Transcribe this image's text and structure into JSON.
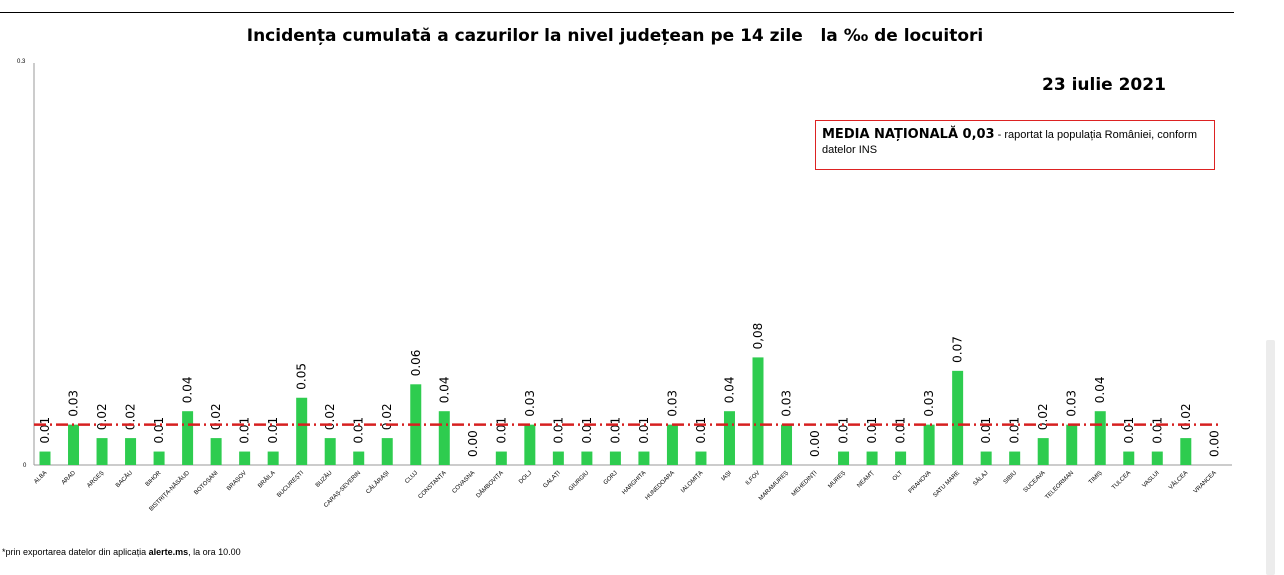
{
  "chart_data": {
    "type": "bar",
    "title": "Incidența cumulată a cazurilor la nivel județean pe 14 zile   la ‰ de locuitori",
    "date": "23 iulie 2021",
    "ylim": [
      0,
      0.3
    ],
    "yticks": [
      "0",
      "0.3"
    ],
    "reference_line": {
      "label": "MEDIA NAȚIONALĂ",
      "value": 0.03,
      "color": "#d62020",
      "style": "dash-dot"
    },
    "bar_color": "#2ecc4f",
    "grid": false,
    "categories": [
      "ALBA",
      "ARAD",
      "ARGEȘ",
      "BACĂU",
      "BIHOR",
      "BISTRIȚA-NĂSĂUD",
      "BOTOȘANI",
      "BRAȘOV",
      "BRĂILA",
      "BUCUREȘTI",
      "BUZĂU",
      "CARAȘ-SEVERIN",
      "CĂLĂRAȘI",
      "CLUJ",
      "CONSTANȚA",
      "COVASNA",
      "DÂMBOVIȚA",
      "DOLJ",
      "GALAȚI",
      "GIURGIU",
      "GORJ",
      "HARGHITA",
      "HUNEDOARA",
      "IALOMIȚA",
      "IAȘI",
      "ILFOV",
      "MARAMUREȘ",
      "MEHEDINȚI",
      "MUREȘ",
      "NEAMȚ",
      "OLT",
      "PRAHOVA",
      "SATU MARE",
      "SĂLAJ",
      "SIBIU",
      "SUCEAVA",
      "TELEORMAN",
      "TIMIȘ",
      "TULCEA",
      "VASLUI",
      "VÂLCEA",
      "VRANCEA"
    ],
    "values": [
      0.01,
      0.03,
      0.02,
      0.02,
      0.01,
      0.04,
      0.02,
      0.01,
      0.01,
      0.05,
      0.02,
      0.01,
      0.02,
      0.06,
      0.04,
      0.0,
      0.01,
      0.03,
      0.01,
      0.01,
      0.01,
      0.01,
      0.03,
      0.01,
      0.04,
      0.08,
      0.03,
      0.0,
      0.01,
      0.01,
      0.01,
      0.03,
      0.07,
      0.01,
      0.01,
      0.02,
      0.03,
      0.04,
      0.01,
      0.01,
      0.02,
      0.0
    ],
    "value_labels": [
      "0.01",
      "0.03",
      "0.02",
      "0.02",
      "0.01",
      "0.04",
      "0.02",
      "0.01",
      "0.01",
      "0.05",
      "0.02",
      "0.01",
      "0.02",
      "0.06",
      "0.04",
      "0.00",
      "0.01",
      "0.03",
      "0.01",
      "0.01",
      "0.01",
      "0.01",
      "0.03",
      "0.01",
      "0.04",
      "0,08",
      "0.03",
      "0.00",
      "0.01",
      "0.01",
      "0.01",
      "0.03",
      "0.07",
      "0.01",
      "0.01",
      "0.02",
      "0.03",
      "0.04",
      "0.01",
      "0.01",
      "0.02",
      "0.00"
    ]
  },
  "media_box": {
    "heading": "MEDIA NAȚIONALĂ 0,03",
    "text": " - raportat la populația României, conform datelor INS"
  },
  "footnote": {
    "prefix": "*prin exportarea datelor din aplicația ",
    "app": "alerte.ms",
    "suffix": ", la ora 10.00"
  }
}
